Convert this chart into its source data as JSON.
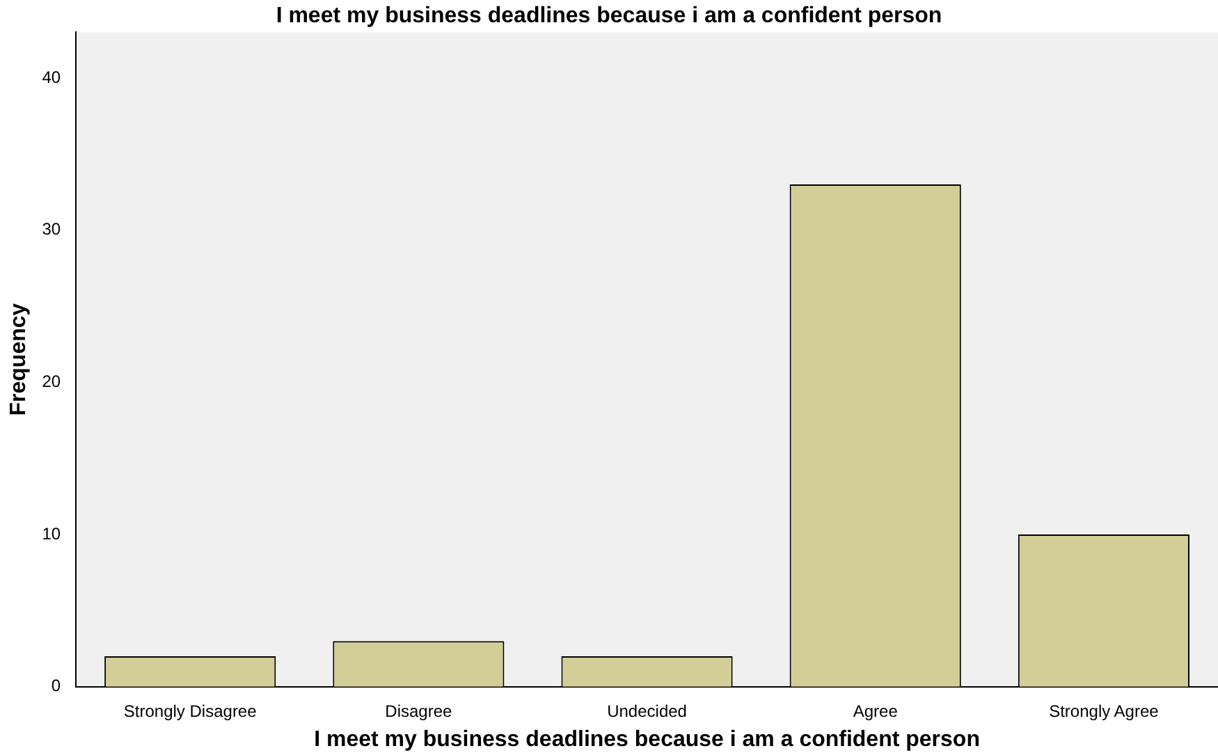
{
  "chart_data": {
    "type": "bar",
    "title": "I meet my business deadlines because i am a confident person",
    "xlabel": "I meet my business deadlines because i am a confident person",
    "ylabel": "Frequency",
    "categories": [
      "Strongly Disagree",
      "Disagree",
      "Undecided",
      "Agree",
      "Strongly Agree"
    ],
    "values": [
      2,
      3,
      2,
      33,
      10
    ],
    "color": "#d3ce98",
    "ylim": [
      0,
      43
    ],
    "yticks": [
      0,
      10,
      20,
      30,
      40
    ],
    "grid": false,
    "legend": false
  }
}
